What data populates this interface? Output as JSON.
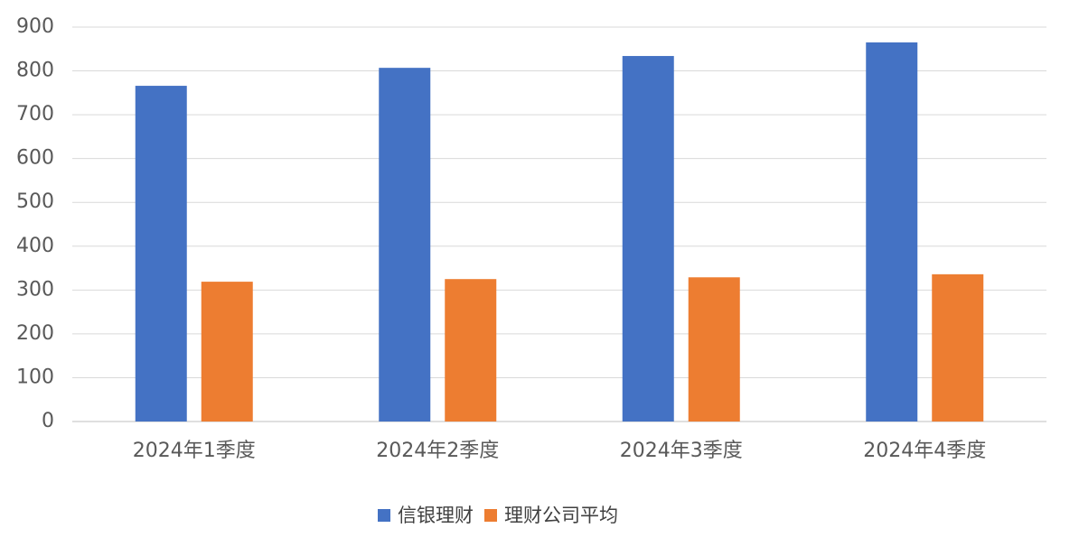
{
  "chart_data": {
    "type": "bar",
    "categories": [
      "2024年1季度",
      "2024年2季度",
      "2024年3季度",
      "2024年4季度"
    ],
    "series": [
      {
        "name": "信银理财",
        "color": "#4472c4",
        "values": [
          766,
          807,
          834,
          865
        ]
      },
      {
        "name": "理财公司平均",
        "color": "#ed7d31",
        "values": [
          319,
          325,
          329,
          336
        ]
      }
    ],
    "ylim": [
      0,
      900
    ],
    "yticks": [
      0,
      100,
      200,
      300,
      400,
      500,
      600,
      700,
      800,
      900
    ],
    "grid": true,
    "legend": "bottom"
  }
}
